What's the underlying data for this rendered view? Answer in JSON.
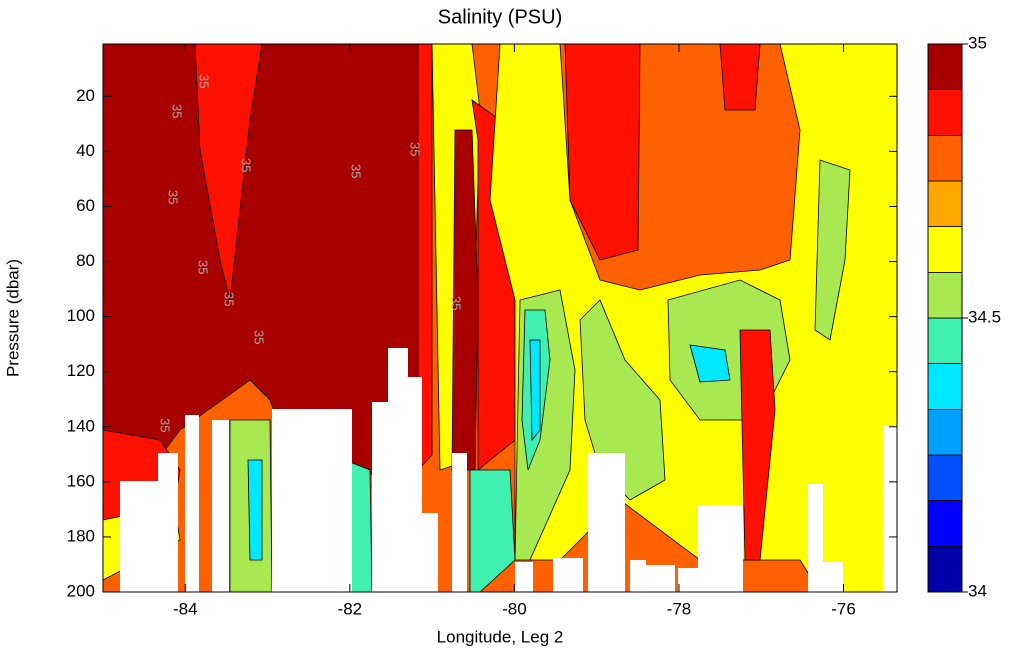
{
  "chart_data": {
    "type": "contourf",
    "title": "Salinity (PSU)",
    "x_label": "Longitude, Leg 2",
    "y_label": "Pressure (dbar)",
    "xlim": [
      -85,
      -75.35
    ],
    "xticks": [
      -84,
      -82,
      -80,
      -78,
      -76
    ],
    "ylim": [
      1,
      200
    ],
    "y_reversed": true,
    "yticks": [
      20,
      40,
      60,
      80,
      100,
      120,
      140,
      160,
      180,
      200
    ],
    "contour_labels": [
      "35",
      "35",
      "35",
      "35",
      "35",
      "35",
      "35",
      "35",
      "35",
      "35",
      "35"
    ],
    "colorbar": {
      "lim": [
        34,
        35
      ],
      "ticks": [
        34,
        34.5,
        35
      ],
      "levels": [
        34,
        34.083,
        34.167,
        34.25,
        34.333,
        34.417,
        34.5,
        34.583,
        34.667,
        34.75,
        34.833,
        34.917,
        35
      ],
      "colors": [
        "#0000a8",
        "#0000ff",
        "#0050ff",
        "#00a0ff",
        "#00e8ff",
        "#40f0b0",
        "#a8e850",
        "#ffff00",
        "#ffa800",
        "#ff6000",
        "#ff1000",
        "#a80000"
      ]
    }
  }
}
